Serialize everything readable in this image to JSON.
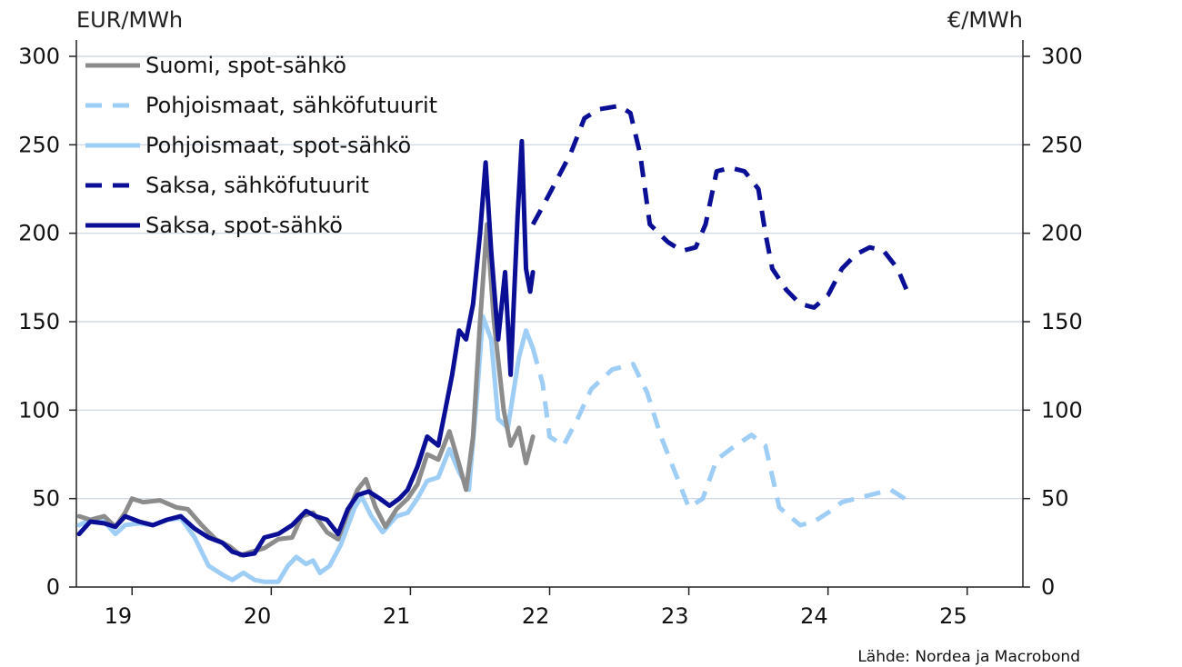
{
  "chart_data": {
    "type": "line",
    "left_unit": "EUR/MWh",
    "right_unit": "€/MWh",
    "source": "Lähde: Nordea ja Macrobond",
    "ylim": [
      0,
      300
    ],
    "y_ticks": [
      "0",
      "50",
      "100",
      "150",
      "200",
      "250",
      "300"
    ],
    "xlim": [
      2018.6,
      2025.4
    ],
    "x_tick_positions": [
      2019,
      2020,
      2021,
      2022,
      2023,
      2024,
      2025
    ],
    "x_labels": [
      {
        "x": 2018.9,
        "label": "19"
      },
      {
        "x": 2019.9,
        "label": "20"
      },
      {
        "x": 2020.9,
        "label": "21"
      },
      {
        "x": 2021.9,
        "label": "22"
      },
      {
        "x": 2022.9,
        "label": "23"
      },
      {
        "x": 2023.9,
        "label": "24"
      },
      {
        "x": 2024.9,
        "label": "25"
      }
    ],
    "grid": "horizontal",
    "legend_position": "top-left",
    "colors": {
      "gray": "#8c8c8c",
      "light_blue": "#9ecdf5",
      "dark_blue": "#0a0f96"
    },
    "series": [
      {
        "name": "Suomi, spot-sähkö",
        "color": "#8c8c8c",
        "dash": false,
        "points": [
          [
            2018.62,
            40
          ],
          [
            2018.7,
            38
          ],
          [
            2018.8,
            40
          ],
          [
            2018.88,
            34
          ],
          [
            2018.95,
            42
          ],
          [
            2019.0,
            50
          ],
          [
            2019.08,
            48
          ],
          [
            2019.2,
            49
          ],
          [
            2019.32,
            45
          ],
          [
            2019.4,
            44
          ],
          [
            2019.5,
            35
          ],
          [
            2019.6,
            27
          ],
          [
            2019.7,
            23
          ],
          [
            2019.78,
            18
          ],
          [
            2019.86,
            20
          ],
          [
            2019.95,
            22
          ],
          [
            2020.05,
            27
          ],
          [
            2020.15,
            28
          ],
          [
            2020.22,
            40
          ],
          [
            2020.3,
            42
          ],
          [
            2020.4,
            31
          ],
          [
            2020.48,
            27
          ],
          [
            2020.55,
            42
          ],
          [
            2020.62,
            55
          ],
          [
            2020.68,
            61
          ],
          [
            2020.75,
            45
          ],
          [
            2020.82,
            34
          ],
          [
            2020.9,
            44
          ],
          [
            2020.98,
            50
          ],
          [
            2021.05,
            58
          ],
          [
            2021.12,
            75
          ],
          [
            2021.2,
            72
          ],
          [
            2021.28,
            88
          ],
          [
            2021.34,
            72
          ],
          [
            2021.4,
            55
          ],
          [
            2021.45,
            85
          ],
          [
            2021.5,
            150
          ],
          [
            2021.55,
            205
          ],
          [
            2021.6,
            150
          ],
          [
            2021.67,
            100
          ],
          [
            2021.72,
            80
          ],
          [
            2021.78,
            90
          ],
          [
            2021.83,
            70
          ],
          [
            2021.88,
            85
          ]
        ]
      },
      {
        "name": "Pohjoismaat, sähköfutuurit",
        "color": "#9ecdf5",
        "dash": true,
        "points": [
          [
            2021.88,
            135
          ],
          [
            2021.95,
            115
          ],
          [
            2022.0,
            85
          ],
          [
            2022.1,
            80
          ],
          [
            2022.2,
            95
          ],
          [
            2022.3,
            112
          ],
          [
            2022.45,
            123
          ],
          [
            2022.6,
            126
          ],
          [
            2022.7,
            110
          ],
          [
            2022.8,
            85
          ],
          [
            2022.9,
            65
          ],
          [
            2023.0,
            45
          ],
          [
            2023.1,
            50
          ],
          [
            2023.2,
            72
          ],
          [
            2023.3,
            78
          ],
          [
            2023.45,
            86
          ],
          [
            2023.55,
            80
          ],
          [
            2023.65,
            45
          ],
          [
            2023.8,
            35
          ],
          [
            2023.9,
            37
          ],
          [
            2024.0,
            42
          ],
          [
            2024.1,
            48
          ],
          [
            2024.3,
            52
          ],
          [
            2024.45,
            55
          ],
          [
            2024.55,
            50
          ],
          [
            2024.6,
            46
          ]
        ]
      },
      {
        "name": "Pohjoismaat, spot-sähkö",
        "color": "#9ecdf5",
        "dash": false,
        "points": [
          [
            2018.62,
            35
          ],
          [
            2018.7,
            38
          ],
          [
            2018.8,
            37
          ],
          [
            2018.88,
            30
          ],
          [
            2018.95,
            35
          ],
          [
            2019.05,
            36
          ],
          [
            2019.15,
            35
          ],
          [
            2019.25,
            38
          ],
          [
            2019.35,
            39
          ],
          [
            2019.45,
            28
          ],
          [
            2019.55,
            12
          ],
          [
            2019.65,
            7
          ],
          [
            2019.72,
            4
          ],
          [
            2019.8,
            8
          ],
          [
            2019.88,
            4
          ],
          [
            2019.95,
            3
          ],
          [
            2020.05,
            3
          ],
          [
            2020.12,
            12
          ],
          [
            2020.18,
            17
          ],
          [
            2020.25,
            13
          ],
          [
            2020.3,
            15
          ],
          [
            2020.35,
            8
          ],
          [
            2020.42,
            12
          ],
          [
            2020.5,
            24
          ],
          [
            2020.6,
            45
          ],
          [
            2020.65,
            51
          ],
          [
            2020.72,
            40
          ],
          [
            2020.8,
            31
          ],
          [
            2020.9,
            40
          ],
          [
            2020.98,
            42
          ],
          [
            2021.05,
            50
          ],
          [
            2021.12,
            60
          ],
          [
            2021.2,
            62
          ],
          [
            2021.28,
            78
          ],
          [
            2021.35,
            65
          ],
          [
            2021.42,
            55
          ],
          [
            2021.48,
            110
          ],
          [
            2021.52,
            153
          ],
          [
            2021.58,
            140
          ],
          [
            2021.63,
            95
          ],
          [
            2021.7,
            90
          ],
          [
            2021.78,
            130
          ],
          [
            2021.83,
            145
          ],
          [
            2021.88,
            135
          ]
        ]
      },
      {
        "name": "Saksa, sähköfutuurit",
        "color": "#0a0f96",
        "dash": true,
        "points": [
          [
            2021.88,
            205
          ],
          [
            2021.95,
            215
          ],
          [
            2022.05,
            230
          ],
          [
            2022.15,
            245
          ],
          [
            2022.25,
            265
          ],
          [
            2022.35,
            270
          ],
          [
            2022.5,
            272
          ],
          [
            2022.58,
            268
          ],
          [
            2022.65,
            245
          ],
          [
            2022.72,
            205
          ],
          [
            2022.85,
            195
          ],
          [
            2022.95,
            190
          ],
          [
            2023.05,
            192
          ],
          [
            2023.12,
            205
          ],
          [
            2023.2,
            235
          ],
          [
            2023.3,
            237
          ],
          [
            2023.4,
            235
          ],
          [
            2023.5,
            225
          ],
          [
            2023.55,
            200
          ],
          [
            2023.6,
            180
          ],
          [
            2023.7,
            168
          ],
          [
            2023.8,
            160
          ],
          [
            2023.9,
            158
          ],
          [
            2024.0,
            165
          ],
          [
            2024.1,
            180
          ],
          [
            2024.2,
            188
          ],
          [
            2024.3,
            192
          ],
          [
            2024.4,
            190
          ],
          [
            2024.5,
            180
          ],
          [
            2024.58,
            165
          ]
        ]
      },
      {
        "name": "Saksa, spot-sähkö",
        "color": "#0a0f96",
        "dash": false,
        "points": [
          [
            2018.62,
            30
          ],
          [
            2018.7,
            37
          ],
          [
            2018.8,
            36
          ],
          [
            2018.88,
            34
          ],
          [
            2018.95,
            40
          ],
          [
            2019.05,
            37
          ],
          [
            2019.15,
            35
          ],
          [
            2019.25,
            38
          ],
          [
            2019.35,
            40
          ],
          [
            2019.45,
            33
          ],
          [
            2019.55,
            28
          ],
          [
            2019.65,
            25
          ],
          [
            2019.72,
            20
          ],
          [
            2019.8,
            18
          ],
          [
            2019.88,
            19
          ],
          [
            2019.95,
            28
          ],
          [
            2020.05,
            30
          ],
          [
            2020.15,
            35
          ],
          [
            2020.25,
            43
          ],
          [
            2020.32,
            40
          ],
          [
            2020.4,
            38
          ],
          [
            2020.48,
            30
          ],
          [
            2020.55,
            44
          ],
          [
            2020.62,
            52
          ],
          [
            2020.7,
            54
          ],
          [
            2020.78,
            50
          ],
          [
            2020.85,
            46
          ],
          [
            2020.92,
            50
          ],
          [
            2020.98,
            55
          ],
          [
            2021.05,
            68
          ],
          [
            2021.12,
            85
          ],
          [
            2021.2,
            80
          ],
          [
            2021.25,
            100
          ],
          [
            2021.3,
            120
          ],
          [
            2021.35,
            145
          ],
          [
            2021.4,
            140
          ],
          [
            2021.45,
            160
          ],
          [
            2021.5,
            200
          ],
          [
            2021.54,
            240
          ],
          [
            2021.58,
            190
          ],
          [
            2021.63,
            140
          ],
          [
            2021.68,
            178
          ],
          [
            2021.72,
            120
          ],
          [
            2021.77,
            210
          ],
          [
            2021.8,
            252
          ],
          [
            2021.83,
            180
          ],
          [
            2021.86,
            167
          ],
          [
            2021.88,
            178
          ]
        ]
      }
    ]
  }
}
